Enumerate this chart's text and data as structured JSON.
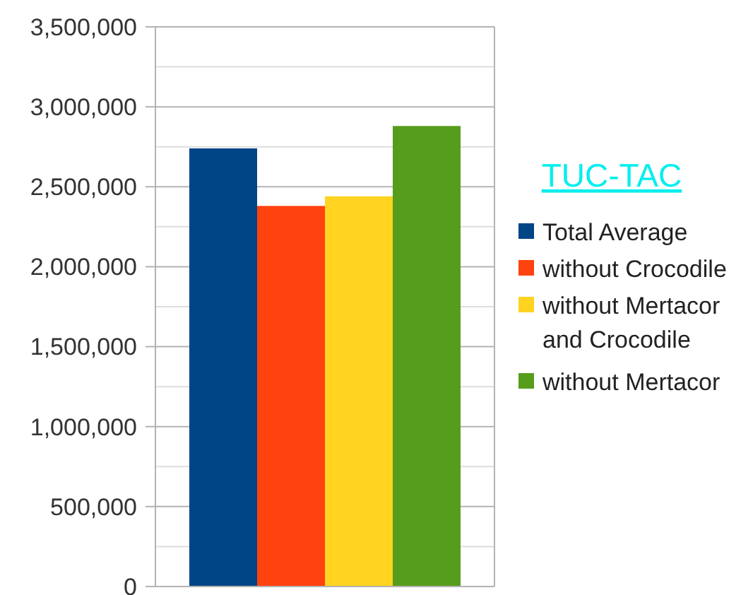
{
  "chart_data": {
    "type": "bar",
    "categories": [
      null
    ],
    "series": [
      {
        "name": "Total Average",
        "color": "#004586",
        "values": [
          2740000
        ]
      },
      {
        "name": "without Crocodile",
        "color": "#ff420e",
        "values": [
          2380000
        ]
      },
      {
        "name": "without Mertacor and Crocodile",
        "color": "#ffd320",
        "values": [
          2440000
        ]
      },
      {
        "name": "without Mertacor",
        "color": "#579d1c",
        "values": [
          2880000
        ]
      }
    ],
    "ylim": [
      0,
      3500000
    ],
    "yticks": [
      {
        "value": 0,
        "label": "0"
      },
      {
        "value": 250000,
        "label": null
      },
      {
        "value": 500000,
        "label": "500,000"
      },
      {
        "value": 750000,
        "label": null
      },
      {
        "value": 1000000,
        "label": "1,000,000"
      },
      {
        "value": 1250000,
        "label": null
      },
      {
        "value": 1500000,
        "label": "1,500,000"
      },
      {
        "value": 1750000,
        "label": null
      },
      {
        "value": 2000000,
        "label": "2,000,000"
      },
      {
        "value": 2250000,
        "label": null
      },
      {
        "value": 2500000,
        "label": "2,500,000"
      },
      {
        "value": 2750000,
        "label": null
      },
      {
        "value": 3000000,
        "label": "3,000,000"
      },
      {
        "value": 3250000,
        "label": null
      },
      {
        "value": 3500000,
        "label": "3,500,000"
      }
    ],
    "grid": "y",
    "legend": "right",
    "legend_title": "TUC-TAC"
  }
}
